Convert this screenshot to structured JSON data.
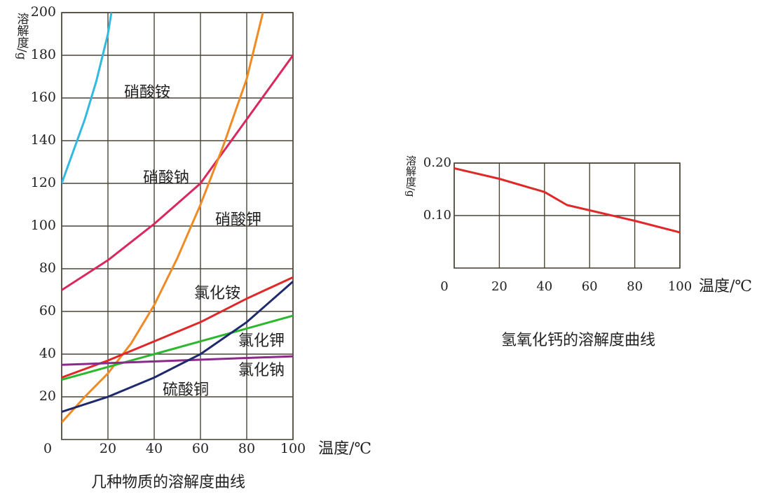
{
  "chart_data": [
    {
      "type": "line",
      "title": "几种物质的溶解度曲线",
      "xlabel": "温度/℃",
      "ylabel": "溶解度/g",
      "xlim": [
        0,
        100
      ],
      "ylim": [
        0,
        200
      ],
      "xticks": [
        0,
        20,
        40,
        60,
        80,
        100
      ],
      "yticks": [
        20,
        40,
        60,
        80,
        100,
        120,
        140,
        160,
        180,
        200
      ],
      "grid": true,
      "series": [
        {
          "name": "硝酸铵",
          "color": "#33b8e0",
          "x": [
            0,
            5,
            10,
            15,
            20,
            21.5
          ],
          "values": [
            120,
            135,
            150,
            168,
            190,
            200
          ]
        },
        {
          "name": "硝酸钠",
          "color": "#d8285e",
          "x": [
            0,
            20,
            40,
            60,
            80,
            100
          ],
          "values": [
            70,
            84,
            101,
            120,
            150,
            180
          ]
        },
        {
          "name": "硝酸钾",
          "color": "#f08a24",
          "x": [
            0,
            10,
            20,
            30,
            40,
            50,
            60,
            70,
            80,
            87
          ],
          "values": [
            8,
            20,
            31,
            45,
            63,
            85,
            110,
            138,
            169,
            200
          ]
        },
        {
          "name": "氯化铵",
          "color": "#e02828",
          "x": [
            0,
            20,
            40,
            60,
            80,
            100
          ],
          "values": [
            29,
            37,
            46,
            55,
            66,
            76
          ]
        },
        {
          "name": "氯化钾",
          "color": "#2cb82c",
          "x": [
            0,
            20,
            40,
            60,
            80,
            100
          ],
          "values": [
            28,
            34,
            40,
            46,
            52,
            58
          ]
        },
        {
          "name": "氯化钠",
          "color": "#8a2a8a",
          "x": [
            0,
            100
          ],
          "values": [
            35,
            39
          ]
        },
        {
          "name": "硫酸铜",
          "color": "#1f2a6e",
          "x": [
            0,
            20,
            40,
            60,
            80,
            100
          ],
          "values": [
            13,
            20,
            29,
            40,
            55,
            74
          ]
        }
      ]
    },
    {
      "type": "line",
      "title": "氢氧化钙的溶解度曲线",
      "xlabel": "温度/℃",
      "ylabel": "溶解度/g",
      "xlim": [
        0,
        100
      ],
      "ylim": [
        0,
        0.2
      ],
      "xticks": [
        0,
        20,
        40,
        60,
        80,
        100
      ],
      "yticks": [
        {
          "value": 0.1,
          "label": "0.10"
        },
        {
          "value": 0.2,
          "label": "0.20"
        }
      ],
      "grid": true,
      "series": [
        {
          "color": "#e02828",
          "x": [
            0,
            20,
            40,
            50,
            60,
            80,
            100
          ],
          "values": [
            0.19,
            0.17,
            0.145,
            0.12,
            0.11,
            0.09,
            0.068
          ]
        }
      ]
    }
  ]
}
